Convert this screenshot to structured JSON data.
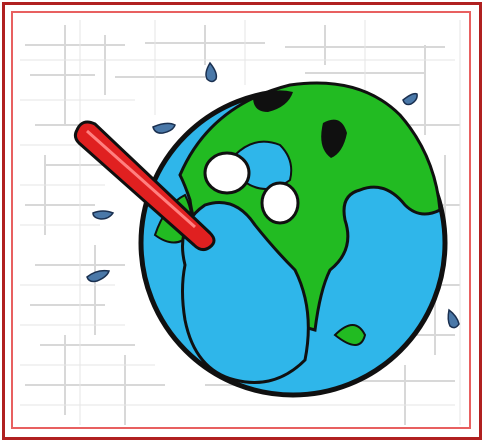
{
  "image": {
    "subject": "",
    "colors": {
      "border": "#b02020",
      "inner_border": "#e86060",
      "background": "#ffffff",
      "texture_stroke": "#cfcfcf",
      "ocean": "#2fb6ea",
      "land": "#22bb22",
      "outline": "#101010",
      "thermometer": "#e02020",
      "sweat": "#4a78a8"
    }
  }
}
